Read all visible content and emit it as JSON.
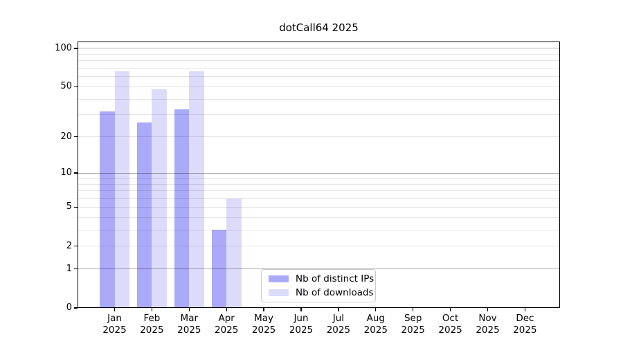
{
  "page": {
    "background": "#ffffff"
  },
  "chart_data": {
    "type": "bar",
    "title": "dotCall64 2025",
    "categories": [
      "Jan 2025",
      "Feb 2025",
      "Mar 2025",
      "Apr 2025",
      "May 2025",
      "Jun 2025",
      "Jul 2025",
      "Aug 2025",
      "Sep 2025",
      "Oct 2025",
      "Nov 2025",
      "Dec 2025"
    ],
    "series": [
      {
        "name": "Nb of distinct IPs",
        "color": "#aaaaf8",
        "values": [
          32,
          26,
          33,
          3,
          null,
          null,
          null,
          null,
          null,
          null,
          null,
          null
        ]
      },
      {
        "name": "Nb of downloads",
        "color": "#dcdcfa",
        "values": [
          66,
          48,
          66,
          6,
          null,
          null,
          null,
          null,
          null,
          null,
          null,
          null
        ]
      }
    ],
    "xlabel": "",
    "ylabel": "",
    "y_axis": {
      "scale": "log1p",
      "ticks": [
        0,
        1,
        2,
        5,
        10,
        20,
        50,
        100
      ],
      "max": 113,
      "major_grid": [
        1,
        10,
        100
      ],
      "minor_grid": [
        2,
        3,
        4,
        5,
        6,
        7,
        8,
        9,
        20,
        30,
        40,
        50,
        60,
        70,
        80,
        90
      ]
    },
    "legend": {
      "position": "lower center"
    },
    "grid": true
  }
}
